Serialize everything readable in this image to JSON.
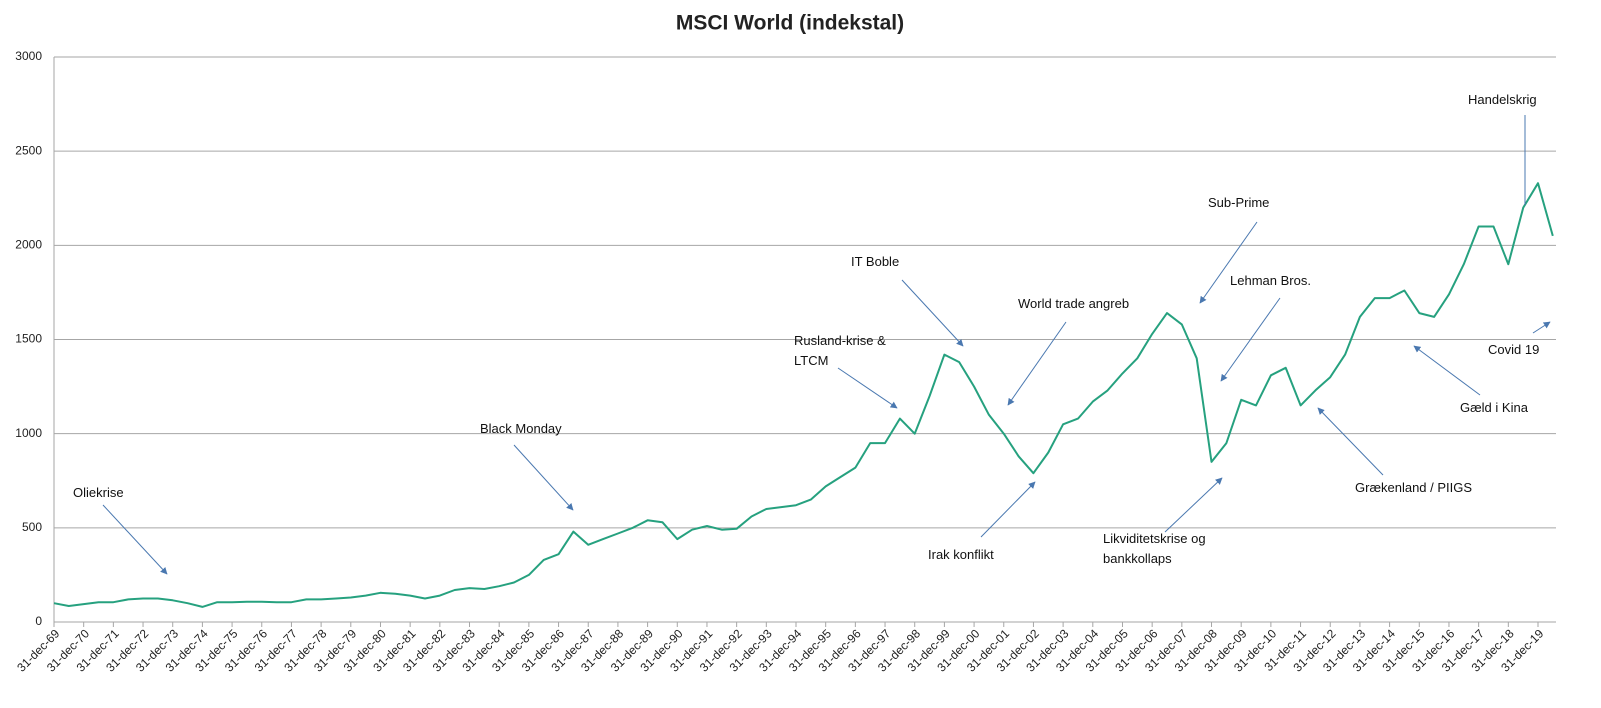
{
  "chart_data": {
    "type": "line",
    "title": "MSCI World (indekstal)",
    "categories": [
      "31-dec-69",
      null,
      "31-dec-70",
      null,
      "31-dec-71",
      null,
      "31-dec-72",
      null,
      "31-dec-73",
      null,
      "31-dec-74",
      null,
      "31-dec-75",
      null,
      "31-dec-76",
      null,
      "31-dec-77",
      null,
      "31-dec-78",
      null,
      "31-dec-79",
      null,
      "31-dec-80",
      null,
      "31-dec-81",
      null,
      "31-dec-82",
      null,
      "31-dec-83",
      null,
      "31-dec-84",
      null,
      "31-dec-85",
      null,
      "31-dec-86",
      null,
      "31-dec-87",
      null,
      "31-dec-88",
      null,
      "31-dec-89",
      null,
      "31-dec-90",
      null,
      "31-dec-91",
      null,
      "31-dec-92",
      null,
      "31-dec-93",
      null,
      "31-dec-94",
      null,
      "31-dec-95",
      null,
      "31-dec-96",
      null,
      "31-dec-97",
      null,
      "31-dec-98",
      null,
      "31-dec-99",
      null,
      "31-dec-00",
      null,
      "31-dec-01",
      null,
      "31-dec-02",
      null,
      "31-dec-03",
      null,
      "31-dec-04",
      null,
      "31-dec-05",
      null,
      "31-dec-06",
      null,
      "31-dec-07",
      null,
      "31-dec-08",
      null,
      "31-dec-09",
      null,
      "31-dec-10",
      null,
      "31-dec-11",
      null,
      "31-dec-12",
      null,
      "31-dec-13",
      null,
      "31-dec-14",
      null,
      "31-dec-15",
      null,
      "31-dec-16",
      null,
      "31-dec-17",
      null,
      "31-dec-18",
      null,
      "31-dec-19",
      null
    ],
    "series": [
      {
        "name": "MSCI World",
        "color": "#26a17f",
        "values": [
          100,
          85,
          95,
          105,
          105,
          120,
          125,
          125,
          115,
          100,
          80,
          105,
          105,
          108,
          108,
          105,
          105,
          120,
          120,
          125,
          130,
          140,
          155,
          150,
          140,
          125,
          140,
          170,
          180,
          175,
          190,
          210,
          250,
          330,
          360,
          480,
          410,
          440,
          470,
          500,
          540,
          530,
          440,
          490,
          510,
          490,
          495,
          560,
          600,
          610,
          620,
          650,
          720,
          770,
          820,
          950,
          950,
          1080,
          1000,
          1200,
          1420,
          1380,
          1250,
          1100,
          1000,
          880,
          790,
          900,
          1050,
          1080,
          1170,
          1230,
          1320,
          1400,
          1530,
          1640,
          1580,
          1400,
          850,
          950,
          1180,
          1150,
          1310,
          1350,
          1150,
          1230,
          1300,
          1420,
          1620,
          1720,
          1720,
          1760,
          1640,
          1620,
          1740,
          1900,
          2100,
          2100,
          1900,
          2200,
          2330,
          2050
        ]
      }
    ],
    "ylim": [
      0,
      3000
    ],
    "yticks": [
      0,
      500,
      1000,
      1500,
      2000,
      2500,
      3000
    ],
    "grid": true,
    "annotations": [
      "Oliekrise",
      "Black Monday",
      "Rusland-krise & LTCM",
      "IT Boble",
      "World trade angreb",
      "Irak konflikt",
      "Sub-Prime",
      "Lehman Bros.",
      "Likviditetskrise og bankkollaps",
      "Grækenland / PIIGS",
      "Gæld i Kina",
      "Handelskrig",
      "Covid 19"
    ]
  }
}
